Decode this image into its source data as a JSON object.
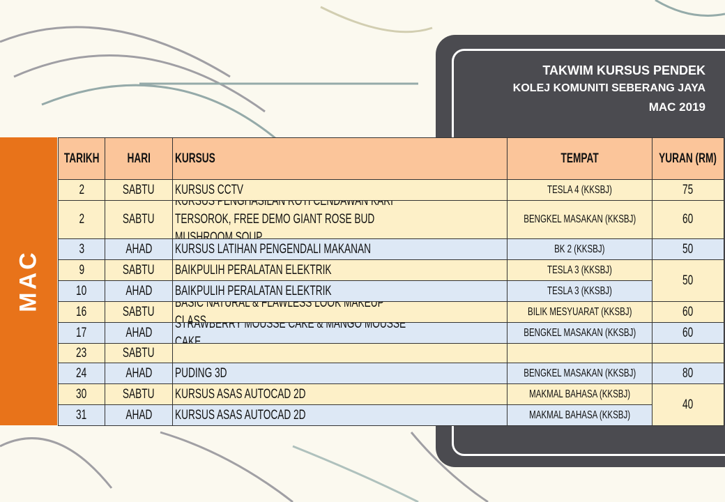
{
  "header": {
    "title": "TAKWIM KURSUS PENDEK",
    "subtitle": "KOLEJ KOMUNITI SEBERANG JAYA",
    "month": "MAC 2019"
  },
  "side_label": "MAC",
  "table": {
    "columns": [
      "TARIKH",
      "HARI",
      "KURSUS",
      "TEMPAT",
      "YURAN (RM)"
    ],
    "rows": [
      {
        "tarikh": "2",
        "hari": "SABTU",
        "kursus": "KURSUS CCTV",
        "tempat": "TESLA 4 (KKSBJ)",
        "yuran": "75"
      },
      {
        "tarikh": "2",
        "hari": "SABTU",
        "kursus": "KURSUS PENGHASILAN ROTI CENDAWAN KARI TERSOROK, FREE DEMO GIANT ROSE BUD MUSHROOM SOUP",
        "tempat": "BENGKEL MASAKAN (KKSBJ)",
        "yuran": "60"
      },
      {
        "tarikh": "3",
        "hari": "AHAD",
        "kursus": "KURSUS LATIHAN PENGENDALI MAKANAN",
        "tempat": "BK 2 (KKSBJ)",
        "yuran": "50"
      },
      {
        "tarikh": "9",
        "hari": "SABTU",
        "kursus": "BAIKPULIH PERALATAN ELEKTRIK",
        "tempat": "TESLA 3 (KKSBJ)",
        "yuran": "50"
      },
      {
        "tarikh": "10",
        "hari": "AHAD",
        "kursus": "BAIKPULIH PERALATAN ELEKTRIK",
        "tempat": "TESLA 3 (KKSBJ)"
      },
      {
        "tarikh": "16",
        "hari": "SABTU",
        "kursus": "BASIC NATURAL & FLAWLESS LOOK MAKEUP CLASS",
        "tempat": "BILIK MESYUARAT (KKSBJ)",
        "yuran": "60"
      },
      {
        "tarikh": "17",
        "hari": "AHAD",
        "kursus": "STRAWBERRY MOUSSE CAKE & MANGO MOUSSE CAKE",
        "tempat": "BENGKEL MASAKAN (KKSBJ)",
        "yuran": "60"
      },
      {
        "tarikh": "23",
        "hari": "SABTU"
      },
      {
        "tarikh": "24",
        "hari": "AHAD",
        "kursus": "PUDING 3D",
        "tempat": "BENGKEL MASAKAN (KKSBJ)",
        "yuran": "80"
      },
      {
        "tarikh": "30",
        "hari": "SABTU",
        "kursus": "KURSUS ASAS AUTOCAD 2D",
        "tempat": "MAKMAL BAHASA (KKSBJ)",
        "yuran": "40"
      },
      {
        "tarikh": "31",
        "hari": "AHAD",
        "kursus": "KURSUS ASAS AUTOCAD 2D",
        "tempat": "MAKMAL BAHASA (KKSBJ)"
      }
    ]
  }
}
